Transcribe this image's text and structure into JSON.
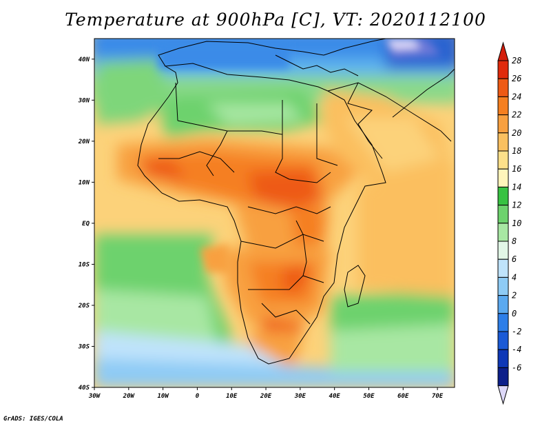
{
  "title": "Temperature at 900hPa [C], VT: 2020112100",
  "credit": "GrADS: IGES/COLA",
  "lon_labels": [
    "30W",
    "20W",
    "10W",
    "0",
    "10E",
    "20E",
    "30E",
    "40E",
    "50E",
    "60E",
    "70E"
  ],
  "lon_values": [
    -30,
    -20,
    -10,
    0,
    10,
    20,
    30,
    40,
    50,
    60,
    70
  ],
  "lat_labels": [
    "40N",
    "30N",
    "20N",
    "10N",
    "EQ",
    "10S",
    "20S",
    "30S",
    "40S"
  ],
  "lat_values": [
    40,
    30,
    20,
    10,
    0,
    -10,
    -20,
    -30,
    -40
  ],
  "extent": {
    "lon_min": -30,
    "lon_max": 75,
    "lat_min": -40,
    "lat_max": 45
  },
  "colorbar": {
    "labels": [
      "28",
      "26",
      "24",
      "22",
      "20",
      "18",
      "16",
      "14",
      "12",
      "10",
      "8",
      "6",
      "4",
      "2",
      "0",
      "-2",
      "-4",
      "-6"
    ],
    "colors_top_to_bottom": [
      "#e02a0c",
      "#ee5a14",
      "#f57f20",
      "#f8a040",
      "#fac060",
      "#fde08a",
      "#fff5bb",
      "#37c242",
      "#6dd26d",
      "#a8e7a3",
      "#e2f7e7",
      "#bfe3fb",
      "#8ecbf5",
      "#5ba9ef",
      "#2d7ee8",
      "#1a5ad6",
      "#0e38b7",
      "#0c1f8a"
    ],
    "overflow_high": "#d41e0c",
    "overflow_low": "#ddd8f8"
  }
}
